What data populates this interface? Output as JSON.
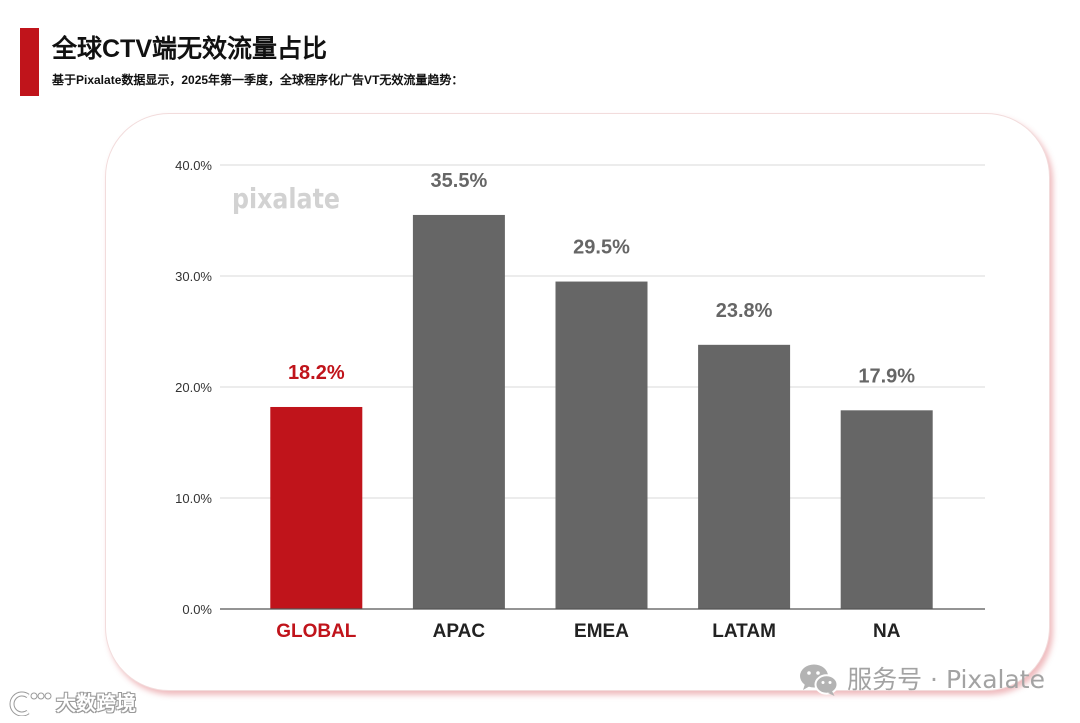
{
  "header": {
    "title": "全球CTV端无效流量占比",
    "subtitle": "基于Pixalate数据显示，2025年第一季度，全球程序化广告VT无效流量趋势：",
    "accent_color": "#c0141b"
  },
  "chart_data": {
    "type": "bar",
    "categories": [
      "GLOBAL",
      "APAC",
      "EMEA",
      "LATAM",
      "NA"
    ],
    "values": [
      18.2,
      35.5,
      29.5,
      23.8,
      17.9
    ],
    "data_labels": [
      "18.2%",
      "35.5%",
      "29.5%",
      "23.8%",
      "17.9%"
    ],
    "unit": "%",
    "ylim": [
      0,
      40
    ],
    "y_ticks": [
      0,
      10,
      20,
      30,
      40
    ],
    "y_tick_labels": [
      "0.0%",
      "10.0%",
      "20.0%",
      "30.0%",
      "40.0%"
    ],
    "xlabel": "",
    "ylabel": "",
    "grid": true,
    "legend": "none",
    "bar_colors": [
      "#c0141b",
      "#666666",
      "#666666",
      "#666666",
      "#666666"
    ],
    "data_label_colors": [
      "#c0141b",
      "#666666",
      "#666666",
      "#666666",
      "#666666"
    ],
    "category_label_colors": [
      "#c0141b",
      "#222222",
      "#222222",
      "#222222",
      "#222222"
    ],
    "watermark": "pixalate"
  },
  "footer": {
    "wechat_icon": "wechat-icon",
    "wechat_account": "服务号 · Pixalate",
    "corner_logo_icon": "dashu-logo-icon",
    "corner_logo_text": "大数跨境"
  }
}
